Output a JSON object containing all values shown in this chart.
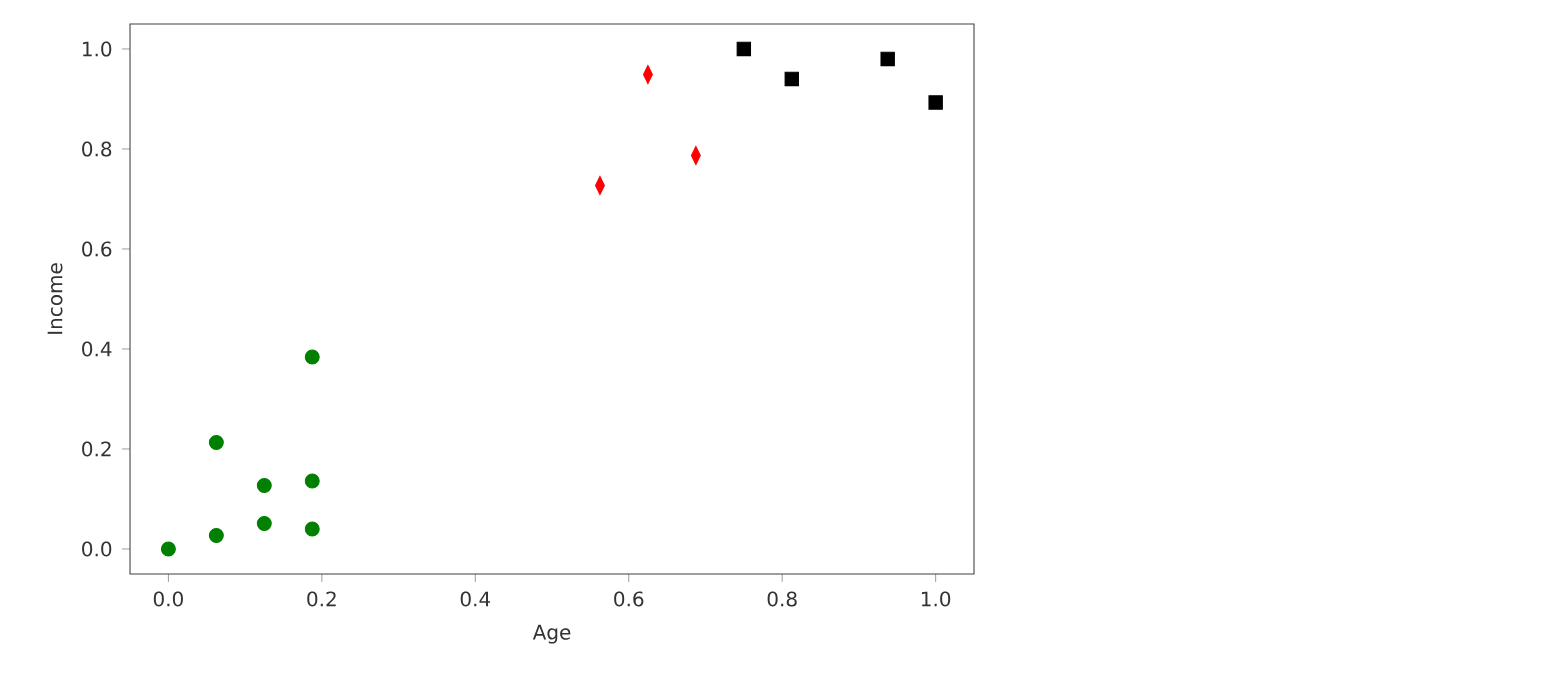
{
  "chart_data": {
    "type": "scatter",
    "xlabel": "Age",
    "ylabel": "Income",
    "xlim": [
      -0.05,
      1.05
    ],
    "ylim": [
      -0.05,
      1.05
    ],
    "xticks": [
      {
        "value": 0,
        "label": "0.0"
      },
      0.2,
      0.4,
      0.6,
      0.8,
      {
        "value": 1,
        "label": "1.0"
      }
    ],
    "yticks": [
      {
        "value": 0,
        "label": "0.0"
      },
      0.2,
      0.4,
      0.6,
      0.8,
      {
        "value": 1,
        "label": "1.0"
      }
    ],
    "series": [
      {
        "color": "#008000",
        "marker": "circle",
        "x": [
          0,
          0.0625,
          0.0625,
          0.125,
          0.125,
          0.1875,
          0.1875,
          0.1875
        ],
        "values": [
          0,
          0.027,
          0.213,
          0.127,
          0.051,
          0.384,
          0.136,
          0.04
        ]
      },
      {
        "color": "#ff0000",
        "marker": "diamond",
        "x": [
          0.5625,
          0.625,
          0.6875
        ],
        "values": [
          0.727,
          0.949,
          0.787
        ]
      },
      {
        "color": "#000000",
        "marker": "square",
        "x": [
          0.75,
          0.8125,
          0.9375,
          1.0
        ],
        "values": [
          1.0,
          0.94,
          0.98,
          0.893
        ]
      }
    ]
  }
}
